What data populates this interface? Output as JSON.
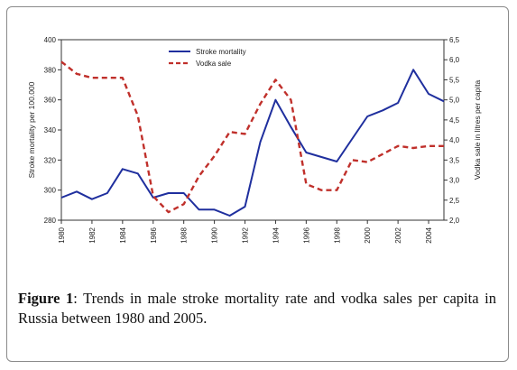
{
  "caption": {
    "label": "Figure 1",
    "text": ": Trends in male stroke mortality rate and vodka sales per capita in Russia between 1980 and 2005."
  },
  "chart_data": {
    "type": "line",
    "title": "",
    "xlabel": "",
    "ylabel_left": "Stroke mortality per 100.000",
    "ylabel_right": "Vodka sale in litres per capita",
    "xlim": [
      1980,
      2005
    ],
    "ylim_left": [
      280,
      400
    ],
    "ylim_right": [
      2.0,
      6.5
    ],
    "x_ticks": [
      "1980",
      "1982",
      "1984",
      "1986",
      "1988",
      "1990",
      "1992",
      "1994",
      "1996",
      "1998",
      "2000",
      "2002",
      "2004"
    ],
    "y_left_ticks": [
      "280",
      "300",
      "320",
      "340",
      "360",
      "380",
      "400"
    ],
    "y_right_ticks": [
      "2,0",
      "2,5",
      "3,0",
      "3,5",
      "4,0",
      "4,5",
      "5,0",
      "5,5",
      "6,0",
      "6,5"
    ],
    "grid": false,
    "legend_position": "top-center",
    "series": [
      {
        "name": "Stroke mortality",
        "axis": "left",
        "color": "#1f2f9e",
        "style": "solid",
        "x": [
          1980,
          1981,
          1982,
          1983,
          1984,
          1985,
          1986,
          1987,
          1988,
          1989,
          1990,
          1991,
          1992,
          1993,
          1994,
          1995,
          1996,
          1997,
          1998,
          1999,
          2000,
          2001,
          2002,
          2003,
          2004,
          2005
        ],
        "values": [
          295,
          299,
          294,
          298,
          314,
          311,
          295,
          298,
          298,
          287,
          287,
          283,
          289,
          332,
          360,
          342,
          325,
          322,
          319,
          334,
          349,
          353,
          358,
          380,
          364,
          359
        ]
      },
      {
        "name": "Vodka sale",
        "axis": "right",
        "color": "#c0302b",
        "style": "dashed",
        "x": [
          1980,
          1981,
          1982,
          1983,
          1984,
          1985,
          1986,
          1987,
          1988,
          1989,
          1990,
          1991,
          1992,
          1993,
          1994,
          1995,
          1996,
          1997,
          1998,
          1999,
          2000,
          2001,
          2002,
          2003,
          2004,
          2005
        ],
        "values": [
          5.95,
          5.65,
          5.55,
          5.55,
          5.55,
          4.6,
          2.6,
          2.2,
          2.4,
          3.1,
          3.6,
          4.2,
          4.15,
          4.9,
          5.5,
          5.0,
          2.9,
          2.75,
          2.75,
          3.5,
          3.45,
          3.65,
          3.85,
          3.8,
          3.85,
          3.85
        ]
      }
    ]
  }
}
